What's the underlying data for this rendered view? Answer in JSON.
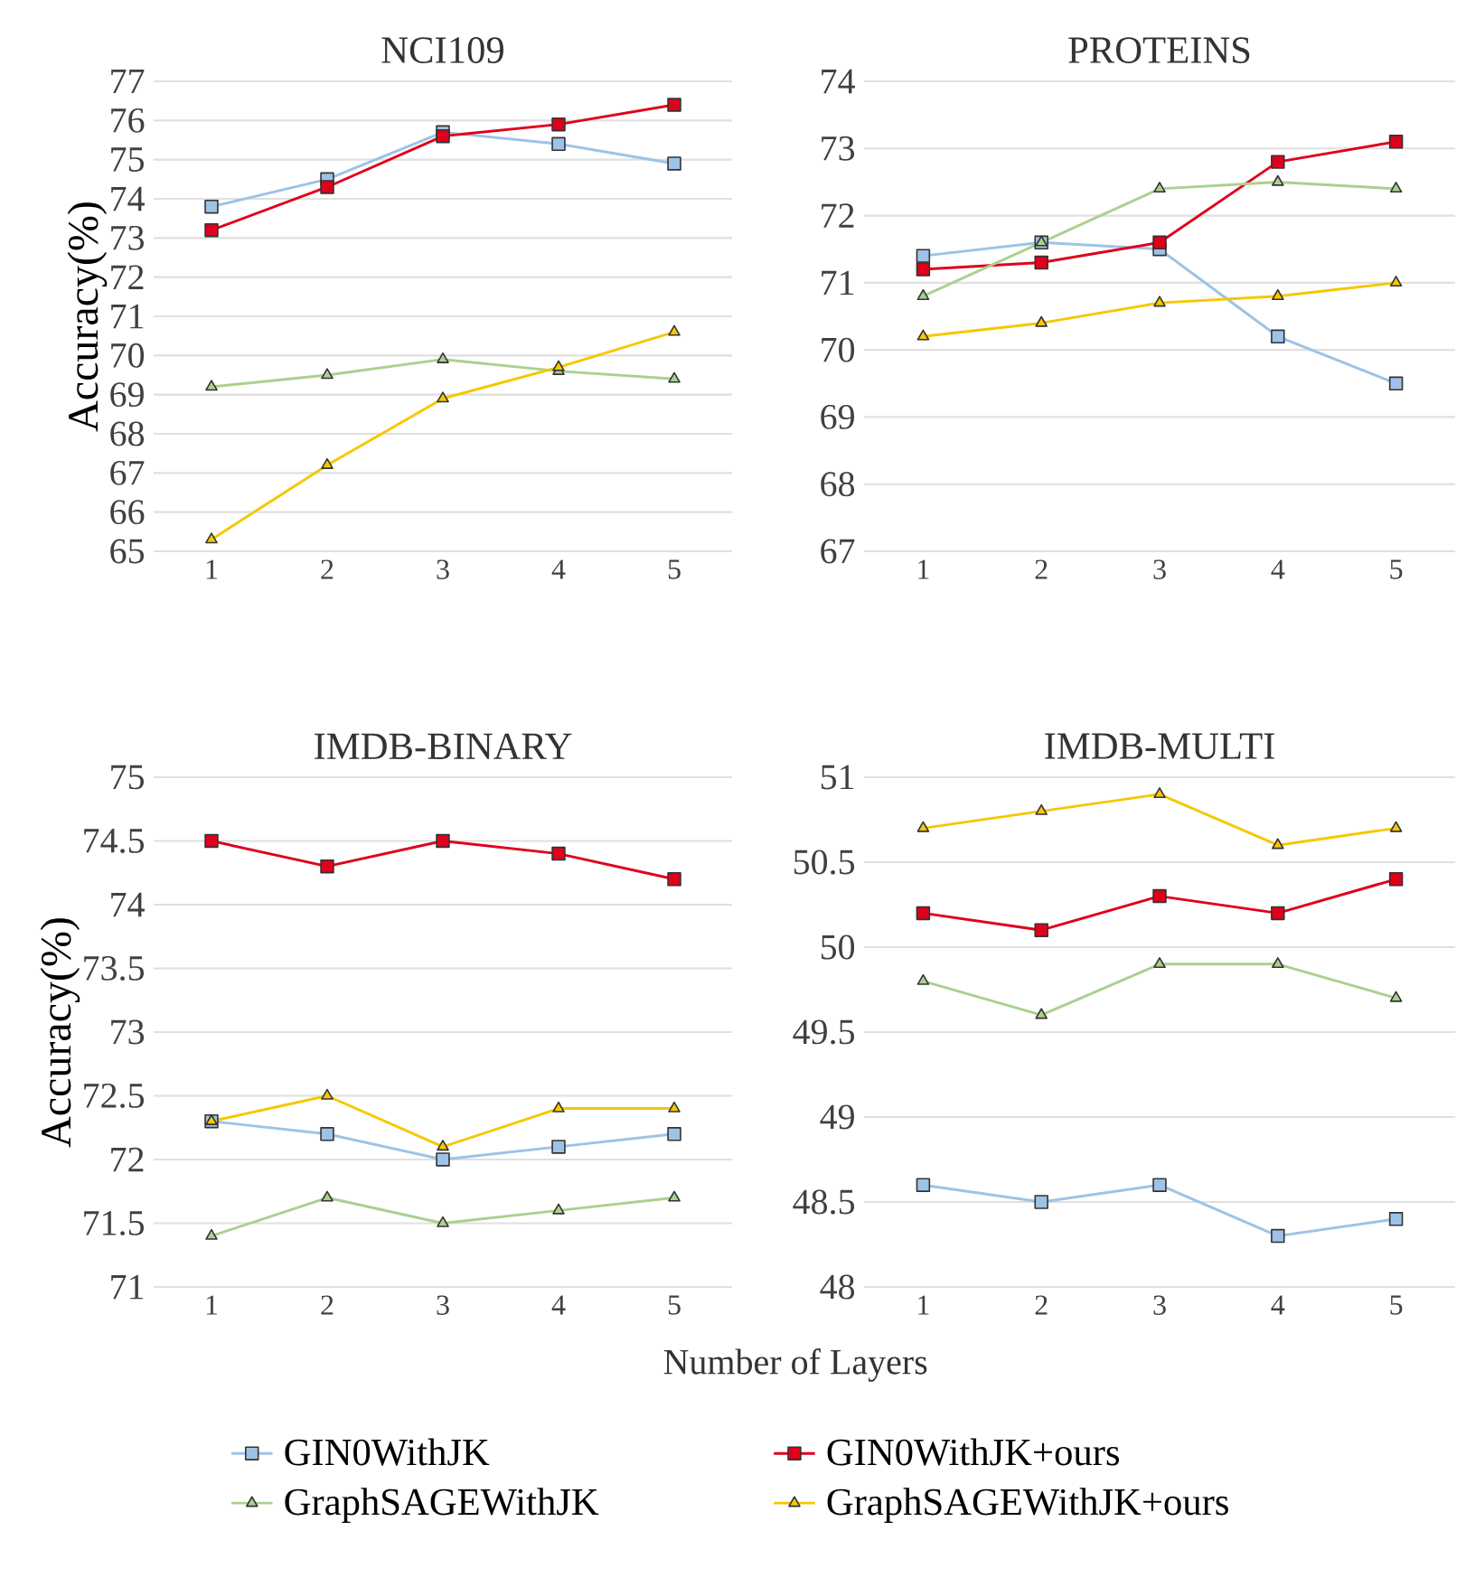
{
  "chart_data": [
    {
      "type": "line",
      "title": "NCI109",
      "ylabel": "Accuracy(%)",
      "categories": [
        "1",
        "2",
        "3",
        "4",
        "5"
      ],
      "ylim": [
        65,
        77
      ],
      "yticks": [
        65,
        66,
        67,
        68,
        69,
        70,
        71,
        72,
        73,
        74,
        75,
        76,
        77
      ],
      "grid": "y",
      "line_style": "solid",
      "series": [
        {
          "color": "#9dc3e6",
          "marker": "square",
          "values": [
            73.8,
            74.5,
            75.7,
            75.4,
            74.9
          ]
        },
        {
          "color": "#e0001b",
          "marker": "square",
          "values": [
            73.2,
            74.3,
            75.6,
            75.9,
            76.4
          ]
        },
        {
          "color": "#a9d18e",
          "marker": "triangle",
          "values": [
            69.2,
            69.5,
            69.9,
            69.6,
            69.4
          ]
        },
        {
          "color": "#f5c800",
          "marker": "triangle",
          "values": [
            65.3,
            67.2,
            68.9,
            69.7,
            70.6
          ]
        }
      ]
    },
    {
      "type": "line",
      "title": "PROTEINS",
      "categories": [
        "1",
        "2",
        "3",
        "4",
        "5"
      ],
      "ylim": [
        67,
        74
      ],
      "yticks": [
        67,
        68,
        69,
        70,
        71,
        72,
        73,
        74
      ],
      "grid": "y",
      "line_style": "solid",
      "series": [
        {
          "color": "#9dc3e6",
          "marker": "square",
          "values": [
            71.4,
            71.6,
            71.5,
            70.2,
            69.5
          ]
        },
        {
          "color": "#e0001b",
          "marker": "square",
          "values": [
            71.2,
            71.3,
            71.6,
            72.8,
            73.1
          ]
        },
        {
          "color": "#a9d18e",
          "marker": "triangle",
          "values": [
            70.8,
            71.6,
            72.4,
            72.5,
            72.4
          ]
        },
        {
          "color": "#f5c800",
          "marker": "triangle",
          "values": [
            70.2,
            70.4,
            70.7,
            70.8,
            71.0
          ]
        }
      ]
    },
    {
      "type": "line",
      "title": "IMDB-BINARY",
      "ylabel": "Accuracy(%)",
      "categories": [
        "1",
        "2",
        "3",
        "4",
        "5"
      ],
      "ylim": [
        71,
        75
      ],
      "yticks": [
        71,
        71.5,
        72,
        72.5,
        73,
        73.5,
        74,
        74.5,
        75
      ],
      "grid": "y",
      "line_style": "solid",
      "series": [
        {
          "color": "#9dc3e6",
          "marker": "square",
          "values": [
            72.3,
            72.2,
            72.0,
            72.1,
            72.2
          ]
        },
        {
          "color": "#e0001b",
          "marker": "square",
          "values": [
            74.5,
            74.3,
            74.5,
            74.4,
            74.2
          ]
        },
        {
          "color": "#a9d18e",
          "marker": "triangle",
          "values": [
            71.4,
            71.7,
            71.5,
            71.6,
            71.7
          ]
        },
        {
          "color": "#f5c800",
          "marker": "triangle",
          "values": [
            72.3,
            72.5,
            72.1,
            72.4,
            72.4
          ]
        }
      ]
    },
    {
      "type": "line",
      "title": "IMDB-MULTI",
      "xlabel": "Number of Layers",
      "categories": [
        "1",
        "2",
        "3",
        "4",
        "5"
      ],
      "ylim": [
        48,
        51
      ],
      "yticks": [
        48,
        48.5,
        49,
        49.5,
        50,
        50.5,
        51
      ],
      "grid": "y",
      "legend": "bottom",
      "line_style": "solid",
      "series": [
        {
          "name": "GIN0WithJK",
          "color": "#9dc3e6",
          "marker": "square",
          "values": [
            48.6,
            48.5,
            48.6,
            48.3,
            48.4
          ]
        },
        {
          "name": "GIN0WithJK+ours",
          "color": "#e0001b",
          "marker": "square",
          "values": [
            50.2,
            50.1,
            50.3,
            50.2,
            50.4
          ]
        },
        {
          "name": "GraphSAGEWithJK",
          "color": "#a9d18e",
          "marker": "triangle",
          "values": [
            49.8,
            49.6,
            49.9,
            49.9,
            49.7
          ]
        },
        {
          "name": "GraphSAGEWithJK+ours",
          "color": "#f5c800",
          "marker": "triangle",
          "values": [
            50.7,
            50.8,
            50.9,
            50.6,
            50.7
          ]
        }
      ]
    }
  ]
}
